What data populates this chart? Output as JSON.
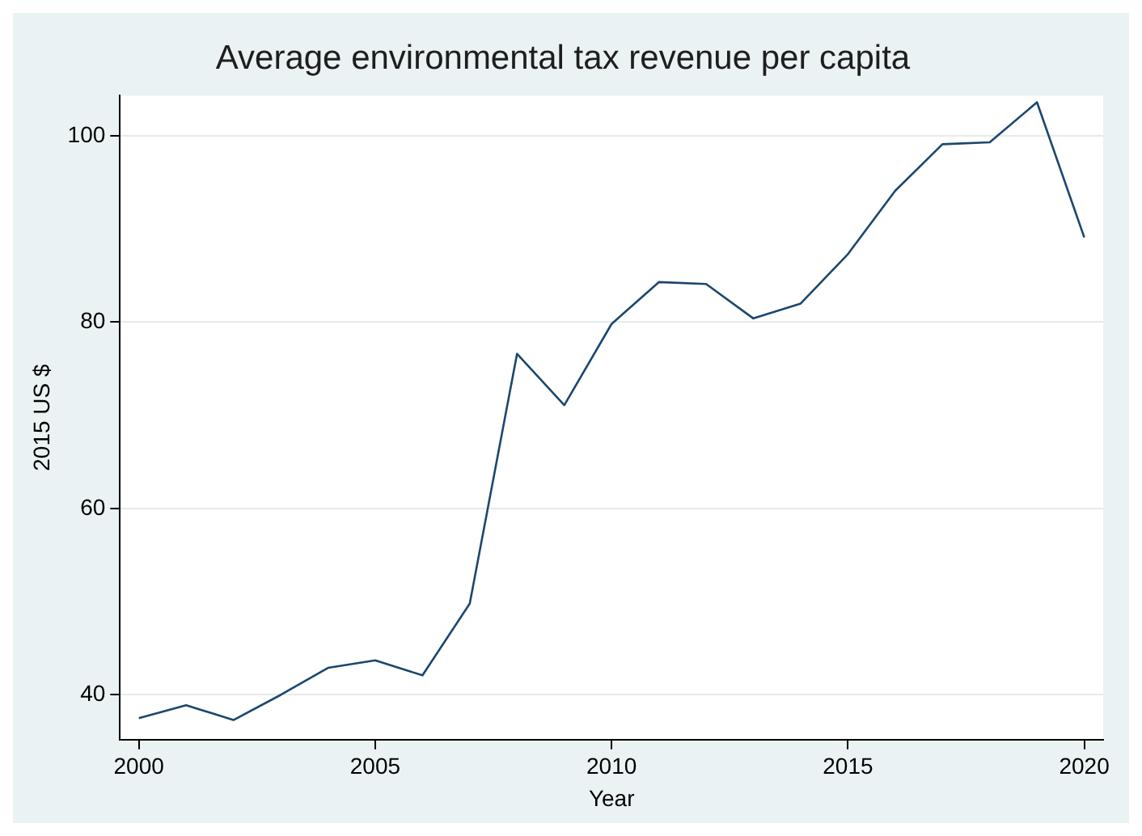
{
  "chart_data": {
    "type": "line",
    "title": "Average environmental tax revenue per capita",
    "xlabel": "Year",
    "ylabel": "2015 US $",
    "x": [
      2000,
      2001,
      2002,
      2003,
      2004,
      2005,
      2006,
      2007,
      2008,
      2009,
      2010,
      2011,
      2012,
      2013,
      2014,
      2015,
      2016,
      2017,
      2018,
      2019,
      2020
    ],
    "series": [
      {
        "color": "#1a476f",
        "values": [
          37.5,
          38.9,
          37.3,
          40.0,
          42.9,
          43.7,
          42.1,
          49.8,
          76.6,
          71.1,
          79.8,
          84.3,
          84.1,
          80.4,
          82.0,
          87.3,
          94.1,
          99.1,
          99.3,
          103.6,
          89.1
        ]
      }
    ],
    "xlim": [
      1999.6,
      2020.4
    ],
    "xticks": [
      2000,
      2005,
      2010,
      2015,
      2020
    ],
    "ylim": [
      35.2,
      104.3
    ],
    "yticks": [
      40,
      60,
      80,
      100
    ],
    "grid": "y",
    "legend": false,
    "marker": "none",
    "line_style": "solid"
  }
}
